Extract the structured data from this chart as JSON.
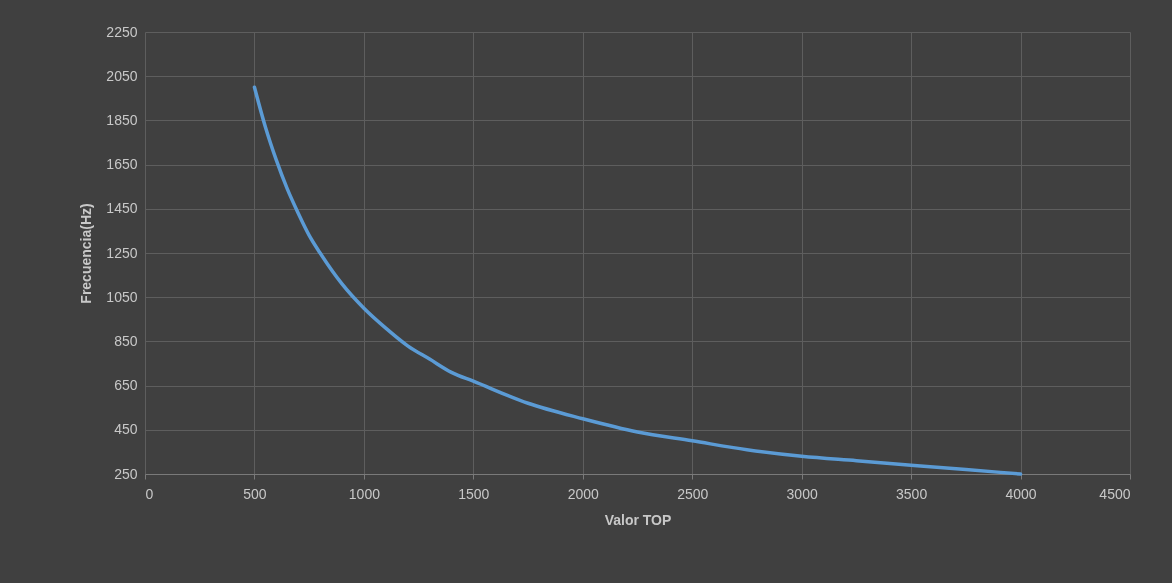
{
  "chart_data": {
    "type": "line",
    "xlabel": "Valor TOP",
    "ylabel": "Frecuencia(Hz)",
    "x": [
      500,
      550,
      600,
      650,
      700,
      750,
      800,
      900,
      1000,
      1100,
      1200,
      1300,
      1400,
      1500,
      1750,
      2000,
      2250,
      2500,
      2750,
      3000,
      3250,
      3500,
      3750,
      4000
    ],
    "series": [
      {
        "color": "#5b9bd5",
        "values": [
          2000,
          1820,
          1670,
          1540,
          1430,
          1330,
          1250,
          1110,
          1000,
          910,
          830,
          770,
          710,
          670,
          570,
          500,
          440,
          400,
          360,
          330,
          310,
          290,
          270,
          250
        ]
      }
    ],
    "xlim": [
      0,
      4500
    ],
    "ylim": [
      250,
      2250
    ],
    "xticks": [
      0,
      500,
      1000,
      1500,
      2000,
      2500,
      3000,
      3500,
      4000,
      4500
    ],
    "yticks": [
      250,
      450,
      650,
      850,
      1050,
      1250,
      1450,
      1650,
      1850,
      2050,
      2250
    ],
    "grid": true
  }
}
